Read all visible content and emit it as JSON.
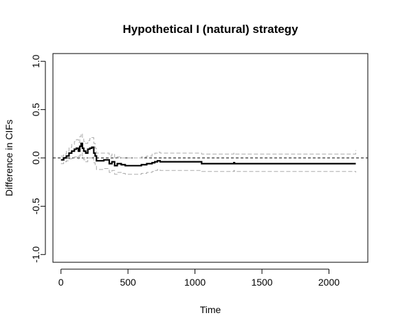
{
  "chart_data": {
    "type": "line",
    "title": "Hypothetical I (natural) strategy",
    "xlabel": "Time",
    "ylabel": "Difference in CIFs",
    "xlim": [
      -60,
      2290
    ],
    "ylim": [
      -1.08,
      1.08
    ],
    "x_ticks": [
      {
        "value": 0,
        "label": "0"
      },
      {
        "value": 500,
        "label": "500"
      },
      {
        "value": 1000,
        "label": "1000"
      },
      {
        "value": 1500,
        "label": "1500"
      },
      {
        "value": 2000,
        "label": "2000"
      }
    ],
    "y_ticks": [
      {
        "value": -1.0,
        "label": "-1.0"
      },
      {
        "value": -0.5,
        "label": "-0.5"
      },
      {
        "value": 0.0,
        "label": "0.0"
      },
      {
        "value": 0.5,
        "label": "0.5"
      },
      {
        "value": 1.0,
        "label": "1.0"
      }
    ],
    "reference_line": {
      "y": 0,
      "style": "dashed",
      "color": "#000000"
    },
    "grid": false,
    "legend": "none",
    "series": [
      {
        "role": "estimate",
        "color": "#000000",
        "style": "solid-step",
        "x": [
          0,
          20,
          40,
          60,
          80,
          100,
          115,
          130,
          140,
          150,
          160,
          170,
          185,
          200,
          215,
          230,
          245,
          255,
          265,
          280,
          320,
          360,
          380,
          400,
          420,
          450,
          480,
          520,
          560,
          600,
          640,
          680,
          700,
          720,
          740,
          1050,
          1100,
          1290,
          1295,
          2200
        ],
        "y": [
          -0.02,
          0.0,
          0.02,
          0.05,
          0.07,
          0.09,
          0.1,
          0.07,
          0.12,
          0.15,
          0.1,
          0.07,
          0.05,
          0.09,
          0.1,
          0.11,
          0.05,
          0.02,
          -0.03,
          -0.03,
          -0.02,
          -0.06,
          -0.04,
          -0.08,
          -0.06,
          -0.07,
          -0.08,
          -0.08,
          -0.08,
          -0.07,
          -0.06,
          -0.05,
          -0.04,
          -0.03,
          -0.04,
          -0.06,
          -0.06,
          -0.05,
          -0.06,
          -0.06
        ]
      },
      {
        "role": "upper-bound",
        "color": "#aaaaaa",
        "style": "dashed-step",
        "x": [
          0,
          20,
          40,
          60,
          80,
          100,
          115,
          130,
          140,
          150,
          160,
          170,
          185,
          200,
          215,
          230,
          245,
          255,
          265,
          280,
          320,
          360,
          380,
          400,
          420,
          450,
          480,
          520,
          560,
          600,
          640,
          680,
          700,
          720,
          740,
          1050,
          1100,
          1290,
          1295,
          2200
        ],
        "y": [
          0.02,
          0.04,
          0.07,
          0.11,
          0.14,
          0.17,
          0.19,
          0.16,
          0.22,
          0.25,
          0.2,
          0.17,
          0.15,
          0.18,
          0.2,
          0.21,
          0.15,
          0.1,
          0.05,
          0.05,
          0.05,
          0.02,
          0.04,
          0.0,
          0.01,
          0.0,
          0.0,
          0.0,
          0.0,
          0.01,
          0.02,
          0.04,
          0.05,
          0.06,
          0.05,
          0.04,
          0.04,
          0.05,
          0.04,
          0.08
        ]
      },
      {
        "role": "lower-bound",
        "color": "#aaaaaa",
        "style": "dashed-step",
        "x": [
          0,
          20,
          40,
          60,
          80,
          100,
          115,
          130,
          140,
          150,
          160,
          170,
          185,
          200,
          215,
          230,
          245,
          255,
          265,
          280,
          320,
          360,
          380,
          400,
          420,
          450,
          480,
          520,
          560,
          600,
          640,
          680,
          700,
          720,
          740,
          1050,
          1100,
          1290,
          1295,
          2200
        ],
        "y": [
          -0.06,
          -0.04,
          -0.03,
          -0.01,
          0.0,
          0.01,
          0.02,
          -0.01,
          0.03,
          0.05,
          0.0,
          -0.02,
          -0.04,
          0.0,
          0.0,
          0.01,
          -0.05,
          -0.08,
          -0.12,
          -0.12,
          -0.11,
          -0.15,
          -0.13,
          -0.17,
          -0.15,
          -0.16,
          -0.17,
          -0.17,
          -0.17,
          -0.16,
          -0.15,
          -0.14,
          -0.13,
          -0.12,
          -0.13,
          -0.14,
          -0.14,
          -0.13,
          -0.14,
          -0.15
        ]
      }
    ]
  }
}
